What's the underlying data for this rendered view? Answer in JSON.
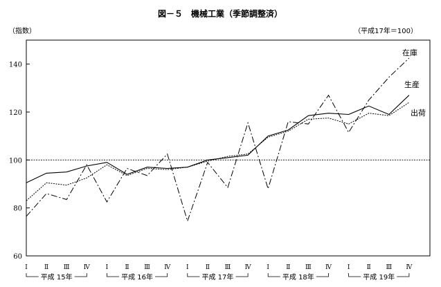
{
  "chart_data": {
    "type": "line",
    "title": "図－５　機械工業（季節調整済）",
    "ylabel": "（指数）",
    "base_note": "（平成17年＝100）",
    "ylim": [
      60,
      150
    ],
    "y_ticks": [
      60,
      80,
      100,
      120,
      140
    ],
    "reference_line": 100,
    "categories": [
      "Ⅰ",
      "Ⅱ",
      "Ⅲ",
      "Ⅳ",
      "Ⅰ",
      "Ⅱ",
      "Ⅲ",
      "Ⅳ",
      "Ⅰ",
      "Ⅱ",
      "Ⅲ",
      "Ⅳ",
      "Ⅰ",
      "Ⅱ",
      "Ⅲ",
      "Ⅳ",
      "Ⅰ",
      "Ⅱ",
      "Ⅲ",
      "Ⅳ"
    ],
    "year_groups": [
      {
        "label": "平成 15年",
        "start": 0,
        "end": 3
      },
      {
        "label": "平成 16年",
        "start": 4,
        "end": 7
      },
      {
        "label": "平成 17年",
        "start": 8,
        "end": 11
      },
      {
        "label": "平成 18年",
        "start": 12,
        "end": 15
      },
      {
        "label": "平成 19年",
        "start": 16,
        "end": 19
      }
    ],
    "series": [
      {
        "name": "生産",
        "style": "solid",
        "values": [
          90.5,
          94.5,
          95.0,
          97.5,
          99.0,
          94.0,
          97.0,
          96.5,
          97.0,
          100.0,
          101.0,
          102.0,
          110.0,
          112.5,
          118.5,
          119.5,
          119.0,
          122.5,
          119.0,
          127.0
        ]
      },
      {
        "name": "出荷",
        "style": "dotted",
        "values": [
          83.0,
          90.5,
          89.5,
          92.5,
          98.0,
          93.5,
          96.5,
          96.0,
          97.0,
          99.5,
          101.5,
          102.5,
          109.5,
          112.0,
          117.0,
          117.5,
          115.0,
          119.5,
          118.5,
          124.0
        ]
      },
      {
        "name": "在庫",
        "style": "dashdot",
        "values": [
          76.5,
          86.0,
          83.5,
          98.0,
          82.5,
          96.5,
          93.5,
          102.5,
          74.5,
          99.0,
          88.5,
          115.5,
          88.0,
          116.0,
          115.0,
          127.0,
          111.5,
          125.0,
          134.5,
          142.5
        ]
      }
    ]
  }
}
